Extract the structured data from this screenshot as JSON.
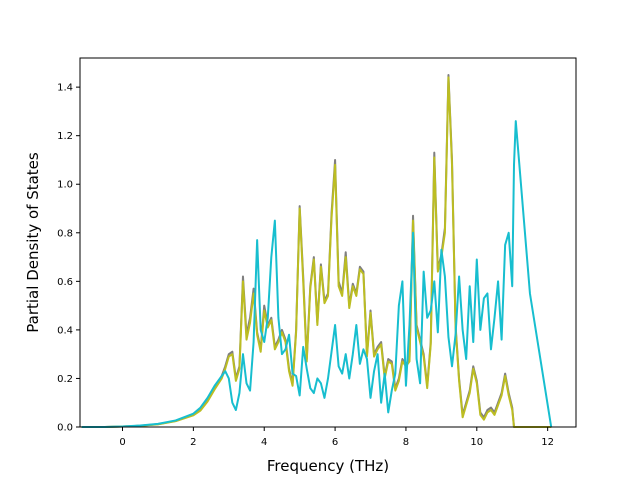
{
  "chart_data": {
    "type": "line",
    "title": "",
    "xlabel": "Frequency (THz)",
    "ylabel": "Partial Density of States",
    "xlim": [
      -1.2,
      12.8
    ],
    "ylim": [
      0.0,
      1.52
    ],
    "xticks": [
      0,
      2,
      4,
      6,
      8,
      10,
      12
    ],
    "yticks": [
      0.0,
      0.2,
      0.4,
      0.6,
      0.8,
      1.0,
      1.2,
      1.4
    ],
    "xtick_labels": [
      "0",
      "2",
      "4",
      "6",
      "8",
      "10",
      "12"
    ],
    "ytick_labels": [
      "0.0",
      "0.2",
      "0.4",
      "0.6",
      "0.8",
      "1.0",
      "1.2",
      "1.4"
    ],
    "grid": false,
    "legend": "none",
    "series": [
      {
        "color": "#7f7f7f",
        "x": [
          -1.15,
          -0.5,
          0.0,
          0.5,
          1.0,
          1.5,
          2.0,
          2.2,
          2.4,
          2.6,
          2.8,
          2.9,
          3.0,
          3.1,
          3.2,
          3.3,
          3.4,
          3.5,
          3.6,
          3.7,
          3.8,
          3.9,
          4.0,
          4.1,
          4.2,
          4.3,
          4.4,
          4.5,
          4.6,
          4.7,
          4.8,
          4.9,
          5.0,
          5.1,
          5.2,
          5.3,
          5.4,
          5.5,
          5.6,
          5.7,
          5.8,
          5.9,
          6.0,
          6.1,
          6.2,
          6.3,
          6.4,
          6.5,
          6.6,
          6.7,
          6.8,
          6.9,
          7.0,
          7.1,
          7.2,
          7.3,
          7.4,
          7.5,
          7.6,
          7.7,
          7.8,
          7.9,
          8.0,
          8.1,
          8.2,
          8.3,
          8.4,
          8.5,
          8.6,
          8.7,
          8.8,
          8.9,
          9.0,
          9.1,
          9.2,
          9.3,
          9.4,
          9.5,
          9.6,
          9.7,
          9.8,
          9.9,
          10.0,
          10.1,
          10.2,
          10.3,
          10.4,
          10.5,
          10.6,
          10.7,
          10.8,
          10.9,
          11.0,
          11.05,
          11.1,
          11.5,
          12.1
        ],
        "y": [
          0.0,
          0.0,
          0.002,
          0.005,
          0.012,
          0.025,
          0.05,
          0.07,
          0.11,
          0.16,
          0.21,
          0.25,
          0.3,
          0.31,
          0.2,
          0.25,
          0.62,
          0.38,
          0.45,
          0.57,
          0.39,
          0.32,
          0.5,
          0.42,
          0.45,
          0.33,
          0.36,
          0.4,
          0.36,
          0.24,
          0.18,
          0.4,
          0.91,
          0.62,
          0.28,
          0.58,
          0.7,
          0.43,
          0.67,
          0.52,
          0.55,
          0.88,
          1.1,
          0.6,
          0.55,
          0.72,
          0.5,
          0.59,
          0.55,
          0.66,
          0.64,
          0.3,
          0.48,
          0.3,
          0.33,
          0.35,
          0.21,
          0.28,
          0.27,
          0.16,
          0.2,
          0.28,
          0.26,
          0.28,
          0.87,
          0.42,
          0.36,
          0.3,
          0.17,
          0.35,
          1.13,
          0.65,
          0.71,
          0.82,
          1.45,
          1.1,
          0.42,
          0.2,
          0.05,
          0.1,
          0.15,
          0.25,
          0.19,
          0.06,
          0.04,
          0.07,
          0.08,
          0.06,
          0.1,
          0.14,
          0.22,
          0.14,
          0.08,
          0.0,
          0.0,
          0.0,
          0.0
        ]
      },
      {
        "color": "#bcbd22",
        "x": [
          -1.15,
          -0.5,
          0.0,
          0.5,
          1.0,
          1.5,
          2.0,
          2.2,
          2.4,
          2.6,
          2.8,
          2.9,
          3.0,
          3.1,
          3.2,
          3.3,
          3.4,
          3.5,
          3.6,
          3.7,
          3.8,
          3.9,
          4.0,
          4.1,
          4.2,
          4.3,
          4.4,
          4.5,
          4.6,
          4.7,
          4.8,
          4.9,
          5.0,
          5.1,
          5.2,
          5.3,
          5.4,
          5.5,
          5.6,
          5.7,
          5.8,
          5.9,
          6.0,
          6.1,
          6.2,
          6.3,
          6.4,
          6.5,
          6.6,
          6.7,
          6.8,
          6.9,
          7.0,
          7.1,
          7.2,
          7.3,
          7.4,
          7.5,
          7.6,
          7.7,
          7.8,
          7.9,
          8.0,
          8.1,
          8.2,
          8.3,
          8.4,
          8.5,
          8.6,
          8.7,
          8.8,
          8.9,
          9.0,
          9.1,
          9.2,
          9.3,
          9.4,
          9.5,
          9.6,
          9.7,
          9.8,
          9.9,
          10.0,
          10.1,
          10.2,
          10.3,
          10.4,
          10.5,
          10.6,
          10.7,
          10.8,
          10.9,
          11.0,
          11.05,
          11.1,
          11.5,
          12.1
        ],
        "y": [
          0.0,
          0.0,
          0.002,
          0.005,
          0.011,
          0.024,
          0.048,
          0.068,
          0.105,
          0.155,
          0.2,
          0.24,
          0.29,
          0.3,
          0.19,
          0.24,
          0.6,
          0.36,
          0.43,
          0.55,
          0.38,
          0.31,
          0.48,
          0.41,
          0.44,
          0.32,
          0.35,
          0.39,
          0.35,
          0.23,
          0.17,
          0.39,
          0.9,
          0.6,
          0.27,
          0.57,
          0.69,
          0.42,
          0.66,
          0.51,
          0.54,
          0.86,
          1.08,
          0.58,
          0.54,
          0.7,
          0.49,
          0.58,
          0.54,
          0.65,
          0.63,
          0.29,
          0.47,
          0.29,
          0.32,
          0.34,
          0.2,
          0.27,
          0.26,
          0.15,
          0.19,
          0.27,
          0.25,
          0.27,
          0.85,
          0.41,
          0.35,
          0.29,
          0.16,
          0.34,
          1.11,
          0.64,
          0.7,
          0.8,
          1.44,
          1.08,
          0.41,
          0.19,
          0.04,
          0.09,
          0.14,
          0.24,
          0.18,
          0.05,
          0.03,
          0.06,
          0.07,
          0.05,
          0.09,
          0.13,
          0.21,
          0.13,
          0.07,
          0.0,
          0.0,
          0.0,
          0.0
        ]
      },
      {
        "color": "#17becf",
        "x": [
          -1.15,
          -0.5,
          0.0,
          0.5,
          1.0,
          1.5,
          2.0,
          2.2,
          2.4,
          2.6,
          2.8,
          2.9,
          3.0,
          3.1,
          3.2,
          3.3,
          3.4,
          3.5,
          3.6,
          3.7,
          3.8,
          3.9,
          4.0,
          4.1,
          4.2,
          4.3,
          4.4,
          4.5,
          4.6,
          4.7,
          4.8,
          4.9,
          5.0,
          5.1,
          5.2,
          5.3,
          5.4,
          5.5,
          5.6,
          5.7,
          5.8,
          5.9,
          6.0,
          6.1,
          6.2,
          6.3,
          6.4,
          6.5,
          6.6,
          6.7,
          6.8,
          6.9,
          7.0,
          7.1,
          7.2,
          7.3,
          7.4,
          7.5,
          7.6,
          7.7,
          7.8,
          7.9,
          8.0,
          8.1,
          8.2,
          8.3,
          8.4,
          8.5,
          8.6,
          8.7,
          8.8,
          8.9,
          9.0,
          9.1,
          9.2,
          9.3,
          9.4,
          9.5,
          9.6,
          9.7,
          9.8,
          9.9,
          10.0,
          10.1,
          10.2,
          10.3,
          10.4,
          10.5,
          10.6,
          10.7,
          10.8,
          10.9,
          11.0,
          11.05,
          11.1,
          11.5,
          12.1
        ],
        "y": [
          0.0,
          0.0,
          0.002,
          0.006,
          0.013,
          0.027,
          0.055,
          0.08,
          0.12,
          0.17,
          0.21,
          0.23,
          0.2,
          0.1,
          0.07,
          0.14,
          0.3,
          0.18,
          0.15,
          0.35,
          0.77,
          0.4,
          0.35,
          0.45,
          0.7,
          0.85,
          0.45,
          0.3,
          0.32,
          0.38,
          0.22,
          0.21,
          0.13,
          0.33,
          0.24,
          0.16,
          0.14,
          0.2,
          0.18,
          0.12,
          0.2,
          0.31,
          0.42,
          0.25,
          0.22,
          0.3,
          0.2,
          0.3,
          0.42,
          0.26,
          0.32,
          0.28,
          0.12,
          0.23,
          0.3,
          0.1,
          0.22,
          0.06,
          0.15,
          0.22,
          0.5,
          0.6,
          0.17,
          0.42,
          0.8,
          0.28,
          0.18,
          0.64,
          0.45,
          0.48,
          0.6,
          0.39,
          0.73,
          0.62,
          0.37,
          0.25,
          0.38,
          0.62,
          0.4,
          0.28,
          0.58,
          0.35,
          0.69,
          0.4,
          0.53,
          0.55,
          0.32,
          0.45,
          0.6,
          0.36,
          0.75,
          0.8,
          0.58,
          1.08,
          1.26,
          0.55,
          0.0
        ]
      }
    ]
  }
}
